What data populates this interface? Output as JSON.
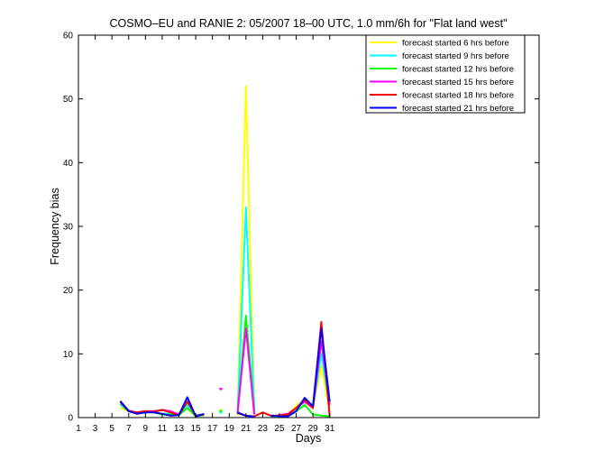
{
  "chart_data": {
    "type": "line",
    "title": "COSMO–EU and RANIE 2: 05/2007 18–00 UTC, 1.0 mm/6h for \"Flat land west\"",
    "xlabel": "Days",
    "ylabel": "Frequency bias",
    "xlim": [
      1,
      56
    ],
    "ylim": [
      0,
      60
    ],
    "x_ticks": [
      1,
      3,
      5,
      7,
      9,
      11,
      13,
      15,
      17,
      19,
      21,
      23,
      25,
      27,
      29,
      31
    ],
    "y_ticks": [
      0,
      10,
      20,
      30,
      40,
      50,
      60
    ],
    "legend_position": "top-right",
    "grid": false,
    "x": [
      1,
      2,
      3,
      4,
      5,
      6,
      7,
      8,
      9,
      10,
      11,
      12,
      13,
      14,
      15,
      16,
      17,
      18,
      19,
      20,
      21,
      22,
      23,
      24,
      25,
      26,
      27,
      28,
      29,
      30,
      31
    ],
    "series": [
      {
        "name": "forecast started 6 hrs before",
        "color": "#ffff00",
        "values": [
          null,
          null,
          null,
          null,
          null,
          1.5,
          1.0,
          0.6,
          0.9,
          0.9,
          0.5,
          0.4,
          0.4,
          1.5,
          0.2,
          0.6,
          null,
          1.2,
          null,
          0.3,
          52,
          1.0,
          null,
          0.3,
          0.3,
          0.5,
          1.8,
          3.0,
          1.5,
          8.0,
          1.0
        ]
      },
      {
        "name": "forecast started 9 hrs before",
        "color": "#00ffff",
        "values": [
          null,
          null,
          null,
          null,
          null,
          2.0,
          1.0,
          0.7,
          0.9,
          0.9,
          0.6,
          0.6,
          0.4,
          2.0,
          0.3,
          0.5,
          null,
          0.8,
          null,
          0.5,
          33,
          1.0,
          null,
          0.3,
          0.3,
          0.4,
          1.5,
          2.8,
          1.5,
          10.0,
          1.5
        ]
      },
      {
        "name": "forecast started 12 hrs before",
        "color": "#00ff00",
        "values": [
          null,
          null,
          null,
          null,
          null,
          2.2,
          1.0,
          0.7,
          0.9,
          0.8,
          0.5,
          0.5,
          0.4,
          1.5,
          0.2,
          0.4,
          null,
          1.0,
          null,
          0.6,
          16,
          0.8,
          null,
          0.2,
          0.2,
          0.3,
          1.0,
          2.0,
          0.5,
          0.3,
          0.2
        ]
      },
      {
        "name": "forecast started 15 hrs before",
        "color": "#ff00ff",
        "values": [
          null,
          null,
          null,
          null,
          null,
          2.4,
          1.1,
          0.8,
          1.0,
          1.0,
          1.2,
          1.0,
          0.5,
          2.5,
          0.3,
          0.5,
          null,
          4.5,
          null,
          0.7,
          14,
          0.5,
          null,
          0.2,
          0.4,
          0.6,
          1.5,
          2.5,
          1.5,
          12.0,
          2.0
        ]
      },
      {
        "name": "forecast started 18 hrs before",
        "color": "#ff0000",
        "values": [
          null,
          null,
          null,
          null,
          null,
          2.5,
          1.0,
          0.8,
          1.0,
          0.9,
          1.2,
          0.8,
          0.4,
          2.5,
          0.3,
          0.5,
          null,
          null,
          null,
          0.7,
          0.3,
          0.2,
          0.8,
          0.3,
          0.3,
          0.5,
          1.5,
          2.8,
          1.5,
          15.0,
          0.2
        ]
      },
      {
        "name": "forecast started 21 hrs before",
        "color": "#0000ff",
        "values": [
          null,
          null,
          null,
          null,
          null,
          2.6,
          1.0,
          0.6,
          0.8,
          0.8,
          0.6,
          0.3,
          0.4,
          3.2,
          0.2,
          0.6,
          null,
          null,
          null,
          0.8,
          0.3,
          0.1,
          null,
          0.3,
          0.2,
          0.2,
          1.0,
          3.1,
          1.8,
          14.0,
          2.5
        ]
      }
    ]
  }
}
